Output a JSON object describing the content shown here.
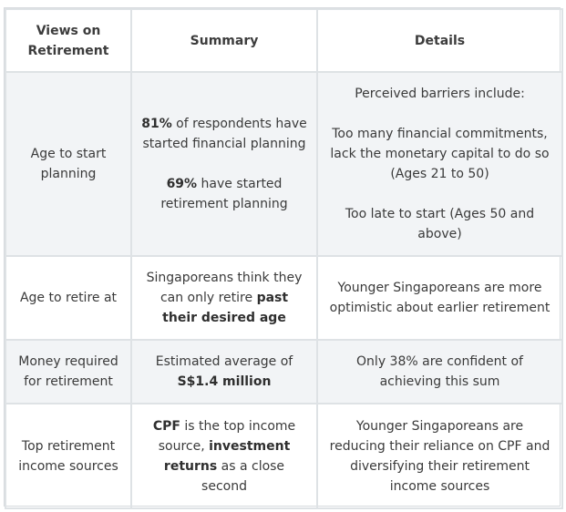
{
  "headers": {
    "col1": "Views on Retirement",
    "col2": "Summary",
    "col3": "Details"
  },
  "rows": [
    {
      "label": "Age to start planning",
      "summary": {
        "p1_bold": "81%",
        "p1_rest": " of respondents have started financial planning",
        "p2_bold": "69%",
        "p2_rest": " have started retirement planning"
      },
      "details": {
        "p1": "Perceived barriers include:",
        "p2": "Too many financial commitments, lack the monetary capital to do so (Ages 21 to 50)",
        "p3": "Too late to start (Ages 50 and above)"
      }
    },
    {
      "label": "Age to retire at",
      "summary": {
        "text": "Singaporeans think they can only retire ",
        "bold": "past their desired age"
      },
      "details": {
        "text": "Younger Singaporeans are more optimistic about earlier retirement"
      }
    },
    {
      "label": "Money required for retirement",
      "summary": {
        "text": "Estimated average of ",
        "bold": "S$1.4 million"
      },
      "details": {
        "text": "Only 38% are confident of achieving this sum"
      }
    },
    {
      "label": "Top retirement income sources",
      "summary": {
        "bold1": "CPF",
        "text1": " is the top income source, ",
        "bold2": "investment returns",
        "text2": " as a close second"
      },
      "details": {
        "text": "Younger Singaporeans are reducing their reliance on CPF and diversifying their retirement income sources"
      }
    }
  ]
}
